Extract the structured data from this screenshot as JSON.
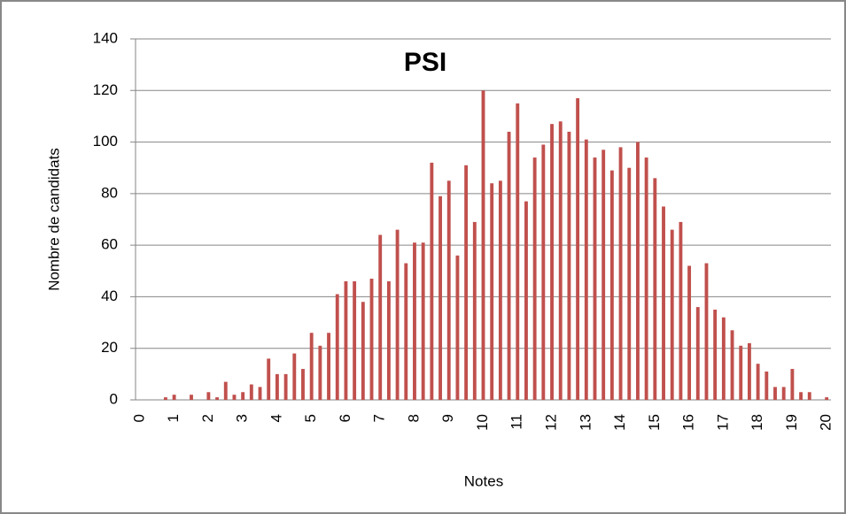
{
  "chart_data": {
    "type": "bar",
    "title": "PSI",
    "xlabel": "Notes",
    "ylabel": "Nombre de candidats",
    "categories": [
      "0",
      null,
      null,
      null,
      "1",
      null,
      null,
      null,
      "2",
      null,
      null,
      null,
      "3",
      null,
      null,
      null,
      "4",
      null,
      null,
      null,
      "5",
      null,
      null,
      null,
      "6",
      null,
      null,
      null,
      "7",
      null,
      null,
      null,
      "8",
      null,
      null,
      null,
      "9",
      null,
      null,
      null,
      "10",
      null,
      null,
      null,
      "11",
      null,
      null,
      null,
      "12",
      null,
      null,
      null,
      "13",
      null,
      null,
      null,
      "14",
      null,
      null,
      null,
      "15",
      null,
      null,
      null,
      "16",
      null,
      null,
      null,
      "17",
      null,
      null,
      null,
      "18",
      null,
      null,
      null,
      "19",
      null,
      null,
      null,
      "20"
    ],
    "values": [
      0,
      0,
      0,
      1,
      2,
      0,
      2,
      0,
      3,
      1,
      7,
      2,
      3,
      6,
      5,
      16,
      10,
      10,
      18,
      12,
      26,
      21,
      26,
      41,
      46,
      46,
      38,
      47,
      64,
      46,
      66,
      53,
      61,
      61,
      92,
      79,
      85,
      56,
      91,
      69,
      120,
      84,
      85,
      104,
      115,
      77,
      94,
      99,
      107,
      108,
      104,
      117,
      101,
      94,
      97,
      89,
      98,
      90,
      100,
      94,
      86,
      75,
      66,
      69,
      52,
      36,
      53,
      35,
      32,
      27,
      21,
      22,
      14,
      11,
      5,
      5,
      12,
      3,
      3,
      0,
      1
    ],
    "color": "#c0504d",
    "ylim": [
      0,
      140
    ],
    "yticks": [
      0,
      20,
      40,
      60,
      80,
      100,
      120,
      140
    ],
    "grid": true
  }
}
